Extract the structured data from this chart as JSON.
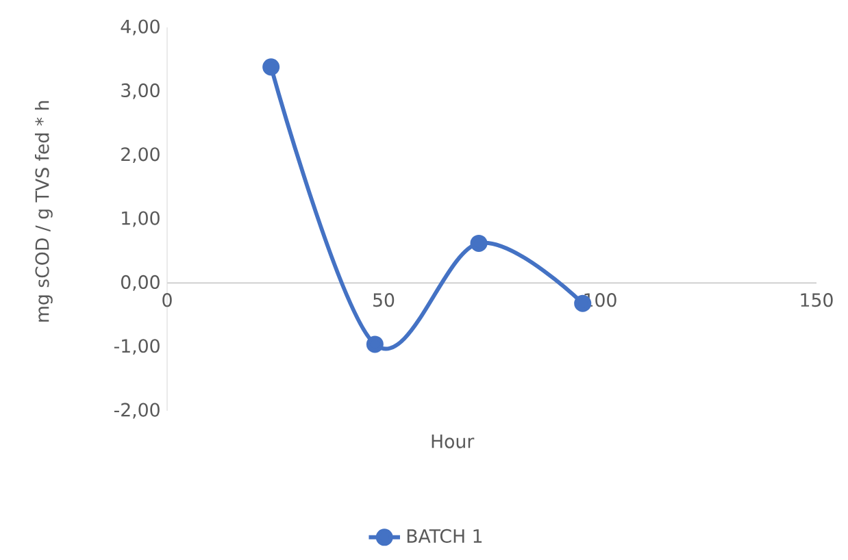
{
  "chart_data": {
    "type": "line",
    "xlabel": "Hour",
    "ylabel": "mg sCOD / g TVS fed * h",
    "x": [
      24,
      48,
      72,
      96
    ],
    "series": [
      {
        "name": "BATCH 1",
        "color": "#4472c4",
        "values": [
          3.38,
          -0.96,
          0.62,
          -0.32
        ]
      }
    ],
    "xlim": [
      0,
      150
    ],
    "xticks": [
      0,
      50,
      100,
      150
    ],
    "ylim": [
      -2,
      4
    ],
    "yticks": [
      {
        "value": -2,
        "label": "-2,00"
      },
      {
        "value": -1,
        "label": "-1,00"
      },
      {
        "value": 0,
        "label": "0,00"
      },
      {
        "value": 1,
        "label": "1,00"
      },
      {
        "value": 2,
        "label": "2,00"
      },
      {
        "value": 3,
        "label": "3,00"
      },
      {
        "value": 4,
        "label": "4,00"
      }
    ],
    "legend": "bottom",
    "marker": "circle",
    "line_style": "solid"
  }
}
